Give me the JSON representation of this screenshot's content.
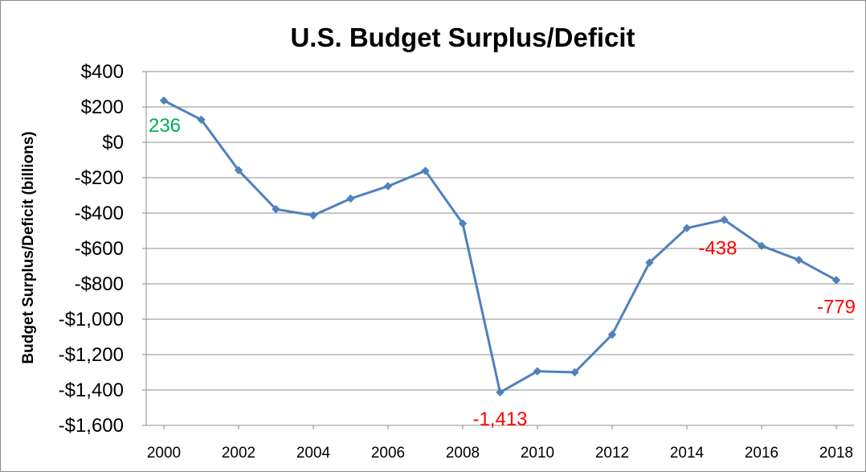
{
  "chart_data": {
    "type": "line",
    "title": "U.S. Budget Surplus/Deficit",
    "xlabel": "",
    "ylabel": "Budget Surplus/Deficit (billions)",
    "xlim": [
      2000,
      2018
    ],
    "ylim": [
      -1600,
      400
    ],
    "y_ticks": [
      400,
      200,
      0,
      -200,
      -400,
      -600,
      -800,
      -1000,
      -1200,
      -1400,
      -1600
    ],
    "y_tick_labels": [
      "$400",
      "$200",
      "$0",
      "-$200",
      "-$400",
      "-$600",
      "-$800",
      "-$1,000",
      "-$1,200",
      "-$1,400",
      "-$1,600"
    ],
    "x_ticks": [
      2000,
      2002,
      2004,
      2006,
      2008,
      2010,
      2012,
      2014,
      2016,
      2018
    ],
    "x_tick_labels": [
      "2000",
      "2002",
      "2004",
      "2006",
      "2008",
      "2010",
      "2012",
      "2014",
      "2016",
      "2018"
    ],
    "grid": "horizontal",
    "legend": "none",
    "series": [
      {
        "color": "#4f81bd",
        "marker": "diamond",
        "x": [
          2000,
          2001,
          2002,
          2003,
          2004,
          2005,
          2006,
          2007,
          2008,
          2009,
          2010,
          2011,
          2012,
          2013,
          2014,
          2015,
          2016,
          2017,
          2018
        ],
        "y": [
          236,
          128,
          -158,
          -378,
          -413,
          -318,
          -248,
          -161,
          -459,
          -1413,
          -1294,
          -1300,
          -1087,
          -680,
          -485,
          -438,
          -585,
          -665,
          -779
        ]
      }
    ],
    "annotations": [
      {
        "text": "236",
        "x": 2000,
        "y": 236,
        "color": "#00b050"
      },
      {
        "text": "-1,413",
        "x": 2009,
        "y": -1413,
        "color": "#ff0000"
      },
      {
        "text": "-438",
        "x": 2015,
        "y": -438,
        "color": "#ff0000"
      },
      {
        "text": "-779",
        "x": 2018,
        "y": -779,
        "color": "#ff0000"
      }
    ]
  }
}
